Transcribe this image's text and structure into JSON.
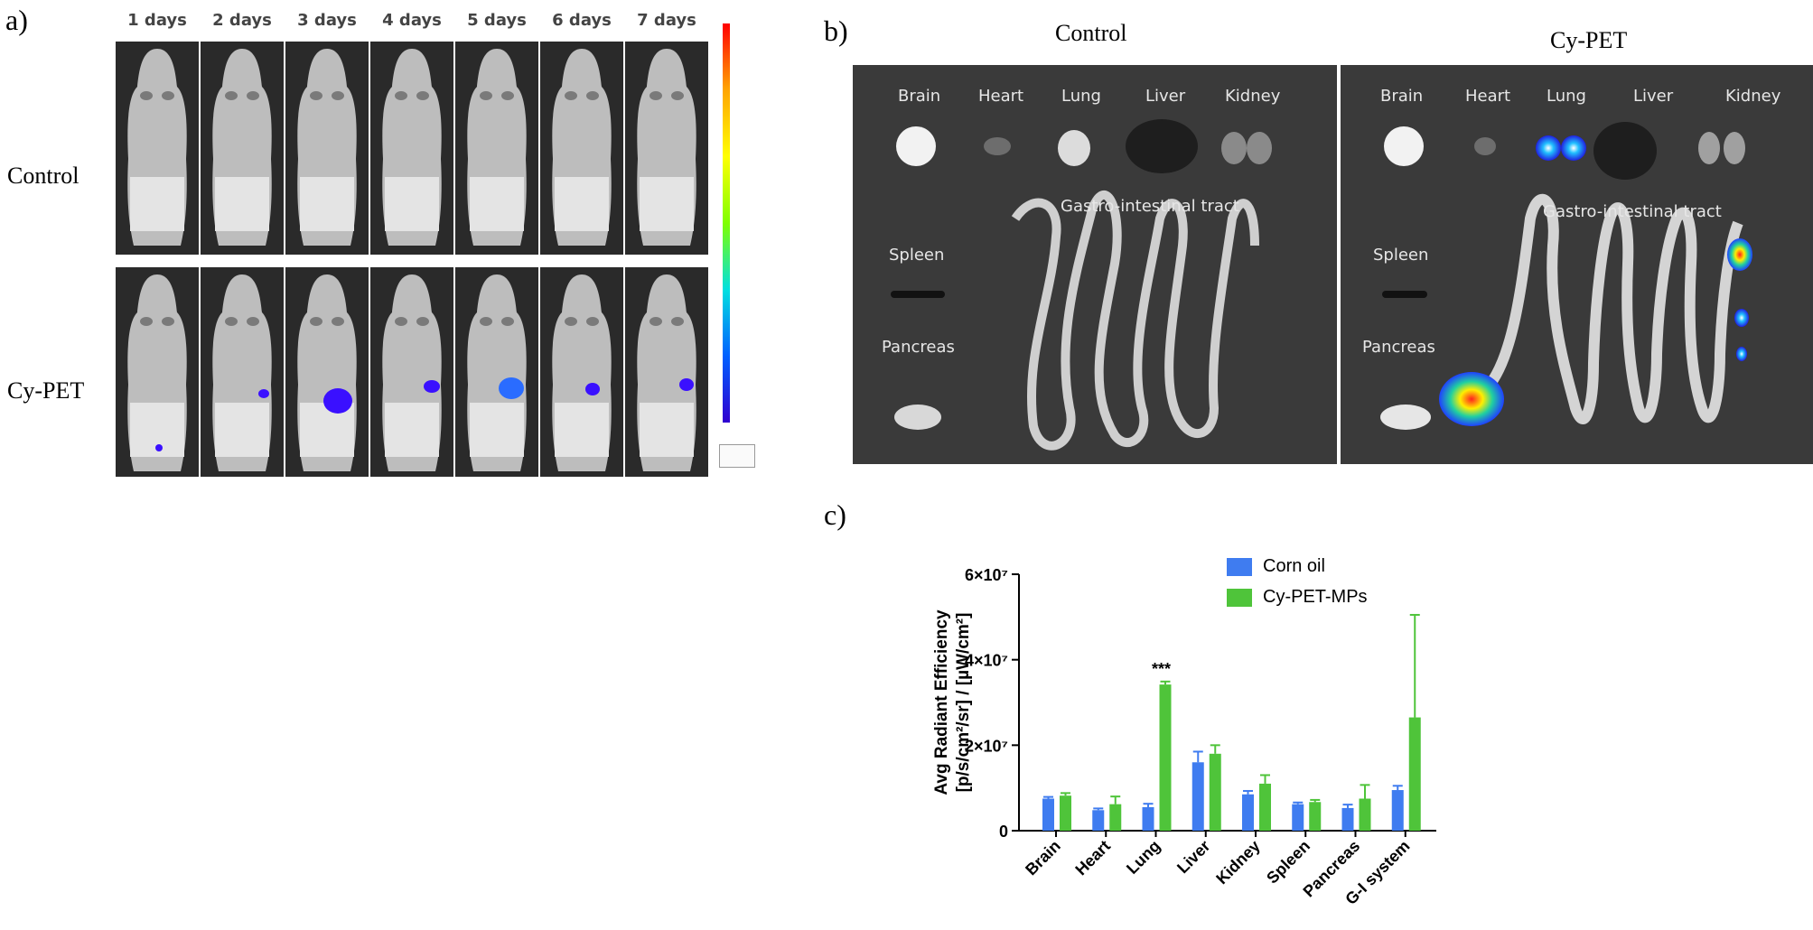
{
  "panel_a": {
    "letter": "a)",
    "days": [
      "1 days",
      "2 days",
      "3 days",
      "4 days",
      "5 days",
      "6 days",
      "7 days"
    ],
    "rows": [
      "Control",
      "Cy-PET"
    ]
  },
  "panel_b": {
    "letter": "b)",
    "groups": [
      "Control",
      "Cy-PET"
    ],
    "organs": {
      "brain": "Brain",
      "heart": "Heart",
      "lung": "Lung",
      "liver": "Liver",
      "kidney": "Kidney",
      "gi": "Gastro-intestinal tract",
      "spleen": "Spleen",
      "pancreas": "Pancreas"
    }
  },
  "panel_c": {
    "letter": "c)"
  },
  "colors": {
    "corn_oil": "#3f7cf0",
    "cy_pet": "#4fc43a"
  },
  "chart_data": {
    "type": "bar",
    "title": "",
    "ylabel_line1": "Avg Radiant Efficiency",
    "ylabel_line2": "[p/s/cm²/sr] / [µW/cm²]",
    "xlabel": "",
    "categories": [
      "Brain",
      "Heart",
      "Lung",
      "Liver",
      "Kidney",
      "Spleen",
      "Pancreas",
      "G-I system"
    ],
    "ylim": [
      0,
      60000000
    ],
    "yticks": [
      {
        "value": 0,
        "label": "0"
      },
      {
        "value": 20000000,
        "label": "2×10⁷"
      },
      {
        "value": 40000000,
        "label": "4×10⁷"
      },
      {
        "value": 60000000,
        "label": "6×10⁷"
      }
    ],
    "legend_position": "top-center",
    "series": [
      {
        "name": "Corn oil",
        "color": "#3f7cf0",
        "values": [
          7500000,
          4800000,
          5500000,
          16000000,
          8500000,
          6200000,
          5300000,
          9500000
        ],
        "errors": [
          400000,
          400000,
          800000,
          2500000,
          800000,
          400000,
          800000,
          1000000
        ]
      },
      {
        "name": "Cy-PET-MPs",
        "color": "#4fc43a",
        "values": [
          8200000,
          6200000,
          34200000,
          18000000,
          11000000,
          6700000,
          7500000,
          26500000
        ],
        "errors": [
          600000,
          1800000,
          700000,
          2000000,
          2000000,
          500000,
          3200000,
          24000000
        ]
      }
    ],
    "annotations": [
      {
        "category": "Lung",
        "text": "***"
      }
    ]
  }
}
